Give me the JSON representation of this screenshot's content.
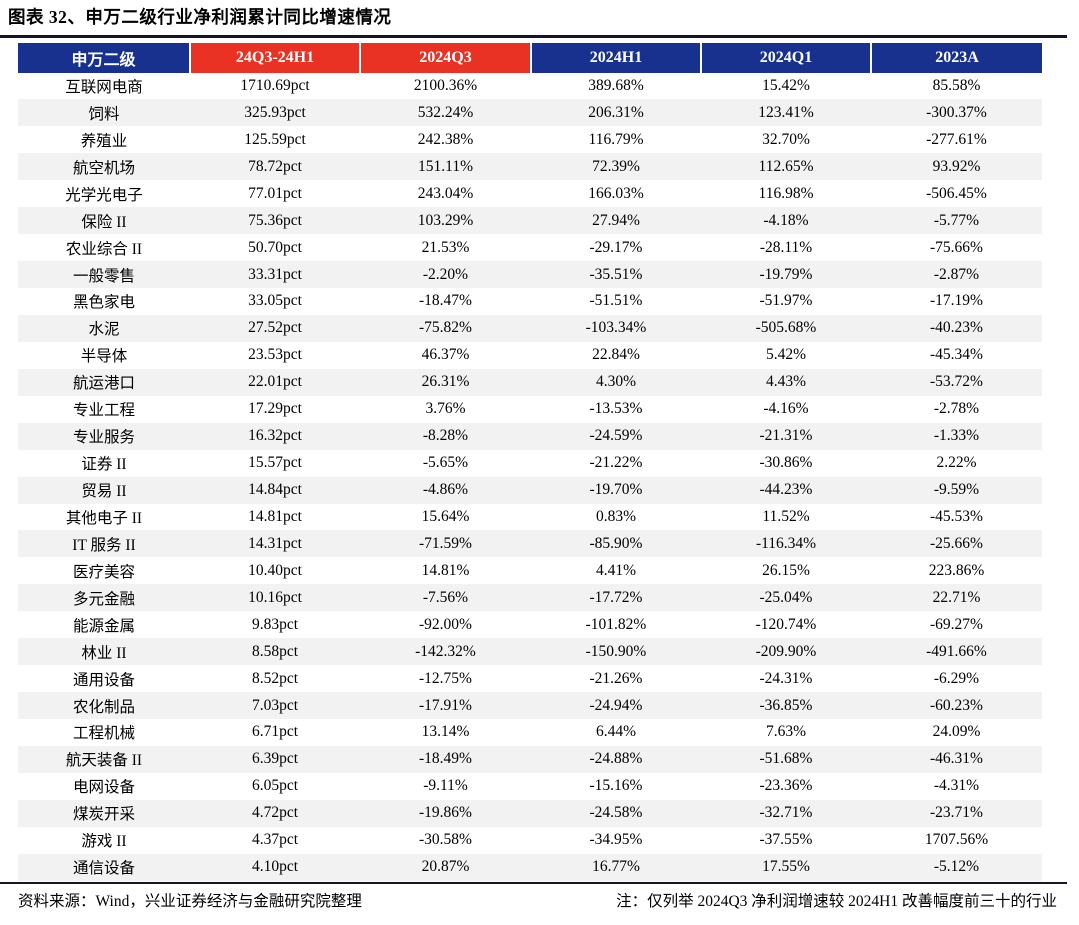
{
  "title": "图表 32、申万二级行业净利润累计同比增速情况",
  "colors": {
    "header_navy": "#18318F",
    "header_red": "#E93223",
    "row_stripe": "#F2F2F2",
    "rule": "#14142B"
  },
  "chart_data": {
    "type": "table",
    "title": "申万二级行业净利润累计同比增速情况",
    "columns": [
      "申万二级",
      "24Q3-24H1",
      "2024Q3",
      "2024H1",
      "2024Q1",
      "2023A"
    ],
    "header_colors": [
      "navy",
      "red",
      "red",
      "navy",
      "navy",
      "navy"
    ],
    "rows": [
      [
        "互联网电商",
        "1710.69pct",
        "2100.36%",
        "389.68%",
        "15.42%",
        "85.58%"
      ],
      [
        "饲料",
        "325.93pct",
        "532.24%",
        "206.31%",
        "123.41%",
        "-300.37%"
      ],
      [
        "养殖业",
        "125.59pct",
        "242.38%",
        "116.79%",
        "32.70%",
        "-277.61%"
      ],
      [
        "航空机场",
        "78.72pct",
        "151.11%",
        "72.39%",
        "112.65%",
        "93.92%"
      ],
      [
        "光学光电子",
        "77.01pct",
        "243.04%",
        "166.03%",
        "116.98%",
        "-506.45%"
      ],
      [
        "保险 II",
        "75.36pct",
        "103.29%",
        "27.94%",
        "-4.18%",
        "-5.77%"
      ],
      [
        "农业综合 II",
        "50.70pct",
        "21.53%",
        "-29.17%",
        "-28.11%",
        "-75.66%"
      ],
      [
        "一般零售",
        "33.31pct",
        "-2.20%",
        "-35.51%",
        "-19.79%",
        "-2.87%"
      ],
      [
        "黑色家电",
        "33.05pct",
        "-18.47%",
        "-51.51%",
        "-51.97%",
        "-17.19%"
      ],
      [
        "水泥",
        "27.52pct",
        "-75.82%",
        "-103.34%",
        "-505.68%",
        "-40.23%"
      ],
      [
        "半导体",
        "23.53pct",
        "46.37%",
        "22.84%",
        "5.42%",
        "-45.34%"
      ],
      [
        "航运港口",
        "22.01pct",
        "26.31%",
        "4.30%",
        "4.43%",
        "-53.72%"
      ],
      [
        "专业工程",
        "17.29pct",
        "3.76%",
        "-13.53%",
        "-4.16%",
        "-2.78%"
      ],
      [
        "专业服务",
        "16.32pct",
        "-8.28%",
        "-24.59%",
        "-21.31%",
        "-1.33%"
      ],
      [
        "证券 II",
        "15.57pct",
        "-5.65%",
        "-21.22%",
        "-30.86%",
        "2.22%"
      ],
      [
        "贸易 II",
        "14.84pct",
        "-4.86%",
        "-19.70%",
        "-44.23%",
        "-9.59%"
      ],
      [
        "其他电子 II",
        "14.81pct",
        "15.64%",
        "0.83%",
        "11.52%",
        "-45.53%"
      ],
      [
        "IT 服务 II",
        "14.31pct",
        "-71.59%",
        "-85.90%",
        "-116.34%",
        "-25.66%"
      ],
      [
        "医疗美容",
        "10.40pct",
        "14.81%",
        "4.41%",
        "26.15%",
        "223.86%"
      ],
      [
        "多元金融",
        "10.16pct",
        "-7.56%",
        "-17.72%",
        "-25.04%",
        "22.71%"
      ],
      [
        "能源金属",
        "9.83pct",
        "-92.00%",
        "-101.82%",
        "-120.74%",
        "-69.27%"
      ],
      [
        "林业 II",
        "8.58pct",
        "-142.32%",
        "-150.90%",
        "-209.90%",
        "-491.66%"
      ],
      [
        "通用设备",
        "8.52pct",
        "-12.75%",
        "-21.26%",
        "-24.31%",
        "-6.29%"
      ],
      [
        "农化制品",
        "7.03pct",
        "-17.91%",
        "-24.94%",
        "-36.85%",
        "-60.23%"
      ],
      [
        "工程机械",
        "6.71pct",
        "13.14%",
        "6.44%",
        "7.63%",
        "24.09%"
      ],
      [
        "航天装备 II",
        "6.39pct",
        "-18.49%",
        "-24.88%",
        "-51.68%",
        "-46.31%"
      ],
      [
        "电网设备",
        "6.05pct",
        "-9.11%",
        "-15.16%",
        "-23.36%",
        "-4.31%"
      ],
      [
        "煤炭开采",
        "4.72pct",
        "-19.86%",
        "-24.58%",
        "-32.71%",
        "-23.71%"
      ],
      [
        "游戏 II",
        "4.37pct",
        "-30.58%",
        "-34.95%",
        "-37.55%",
        "1707.56%"
      ],
      [
        "通信设备",
        "4.10pct",
        "20.87%",
        "16.77%",
        "17.55%",
        "-5.12%"
      ]
    ]
  },
  "footer": {
    "source": "资料来源：Wind，兴业证券经济与金融研究院整理",
    "note": "注：仅列举 2024Q3 净利润增速较 2024H1 改善幅度前三十的行业"
  }
}
